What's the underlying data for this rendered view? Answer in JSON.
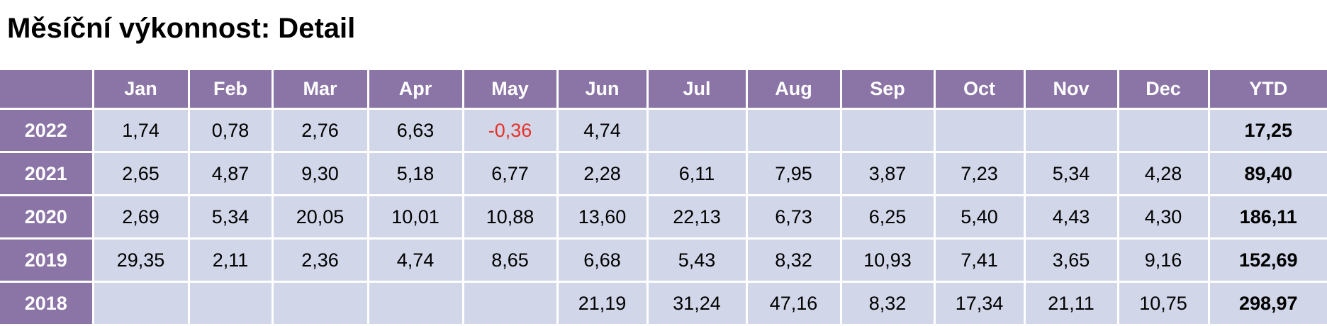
{
  "header": {
    "title": "Měsíční výkonnost: Detail"
  },
  "table": {
    "columns": [
      "Jan",
      "Feb",
      "Mar",
      "Apr",
      "May",
      "Jun",
      "Jul",
      "Aug",
      "Sep",
      "Oct",
      "Nov",
      "Dec",
      "YTD"
    ],
    "rows": [
      {
        "label": "2022",
        "values": [
          "1,74",
          "0,78",
          "2,76",
          "6,63",
          "-0,36",
          "4,74",
          null,
          null,
          null,
          null,
          null,
          null
        ],
        "ytd": "17,25"
      },
      {
        "label": "2021",
        "values": [
          "2,65",
          "4,87",
          "9,30",
          "5,18",
          "6,77",
          "2,28",
          "6,11",
          "7,95",
          "3,87",
          "7,23",
          "5,34",
          "4,28"
        ],
        "ytd": "89,40"
      },
      {
        "label": "2020",
        "values": [
          "2,69",
          "5,34",
          "20,05",
          "10,01",
          "10,88",
          "13,60",
          "22,13",
          "6,73",
          "6,25",
          "5,40",
          "4,43",
          "4,30"
        ],
        "ytd": "186,11"
      },
      {
        "label": "2019",
        "values": [
          "29,35",
          "2,11",
          "2,36",
          "4,74",
          "8,65",
          "6,68",
          "5,43",
          "8,32",
          "10,93",
          "7,41",
          "3,65",
          "9,16"
        ],
        "ytd": "152,69"
      },
      {
        "label": "2018",
        "values": [
          null,
          null,
          null,
          null,
          null,
          "21,19",
          "31,24",
          "47,16",
          "8,32",
          "17,34",
          "21,11",
          "10,75"
        ],
        "ytd": "298,97"
      }
    ]
  }
}
